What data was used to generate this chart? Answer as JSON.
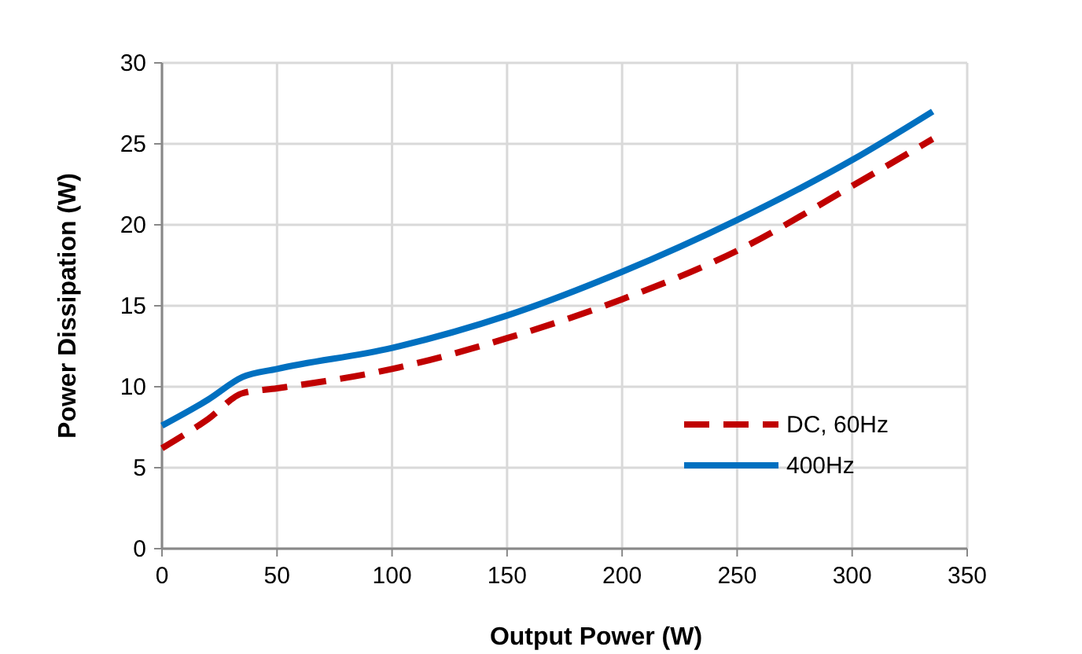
{
  "chart_data": {
    "type": "line",
    "xlabel": "Output Power (W)",
    "ylabel": "Power Dissipation (W)",
    "xlim": [
      0,
      350
    ],
    "xticks": [
      0,
      50,
      100,
      150,
      200,
      250,
      300,
      350
    ],
    "ylim": [
      0,
      30
    ],
    "yticks": [
      0,
      5,
      10,
      15,
      20,
      25,
      30
    ],
    "grid": true,
    "legend": "bottom right",
    "marker": "none",
    "series": [
      {
        "name": "DC, 60Hz",
        "color": "#c00000",
        "line_style": "dashed",
        "x": [
          0,
          20,
          35,
          50,
          100,
          150,
          200,
          250,
          300,
          335
        ],
        "values": [
          6.2,
          8.0,
          9.6,
          9.9,
          11.1,
          13.0,
          15.4,
          18.4,
          22.4,
          25.3
        ]
      },
      {
        "name": "400Hz",
        "color": "#0070c0",
        "line_style": "solid",
        "x": [
          0,
          20,
          35,
          50,
          100,
          150,
          200,
          250,
          300,
          335
        ],
        "values": [
          7.6,
          9.2,
          10.6,
          11.1,
          12.4,
          14.4,
          17.1,
          20.3,
          24.0,
          27.0
        ]
      }
    ]
  }
}
